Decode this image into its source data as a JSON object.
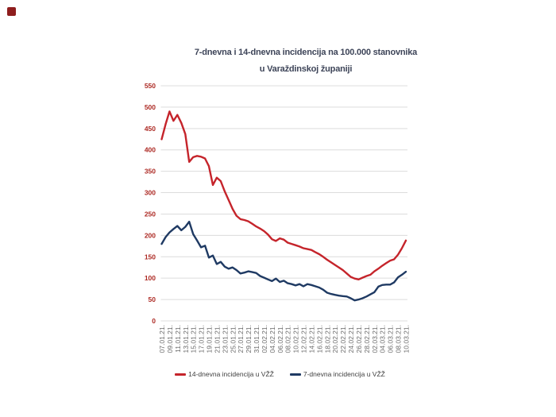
{
  "page": {
    "corner_marker_color": "#8e1d1d"
  },
  "chart": {
    "title_line1": "7-dnevna i 14-dnevna incidencija na 100.000 stanovnika",
    "title_line2": "u Varaždinskoj županiji",
    "legend": [
      {
        "label": "14-dnevna incidencija u VŽŽ",
        "color": "#c5242b"
      },
      {
        "label": "7-dnevna incidencija u VŽŽ",
        "color": "#1f3a63"
      }
    ],
    "colors": {
      "y_labels": "#ad2a24",
      "x_labels": "#6a6a6a",
      "gridlines": "#dcdcdc",
      "title": "#3d4458"
    }
  },
  "chart_data": {
    "type": "line",
    "title": "7-dnevna i 14-dnevna incidencija na 100.000 stanovnika u Varaždinskoj županiji",
    "xlabel": "",
    "ylabel": "",
    "ylim": [
      0,
      550
    ],
    "y_tick_step": 50,
    "tick_every": 2,
    "grid": "horizontal",
    "legend_position": "bottom",
    "x": [
      "07.01.21.",
      "08.01.21.",
      "09.01.21.",
      "10.01.21.",
      "11.01.21.",
      "12.01.21.",
      "13.01.21.",
      "14.01.21.",
      "15.01.21.",
      "16.01.21.",
      "17.01.21.",
      "18.01.21.",
      "19.01.21.",
      "20.01.21.",
      "21.01.21.",
      "22.01.21.",
      "23.01.21.",
      "24.01.21.",
      "25.01.21.",
      "26.01.21.",
      "27.01.21.",
      "28.01.21.",
      "29.01.21.",
      "30.01.21.",
      "31.01.21.",
      "01.02.21.",
      "02.02.21.",
      "03.02.21.",
      "04.02.21.",
      "05.02.21.",
      "06.02.21.",
      "07.02.21.",
      "08.02.21.",
      "09.02.21.",
      "10.02.21.",
      "11.02.21.",
      "12.02.21.",
      "13.02.21.",
      "14.02.21.",
      "15.02.21.",
      "16.02.21.",
      "17.02.21.",
      "18.02.21.",
      "19.02.21.",
      "20.02.21.",
      "21.02.21.",
      "22.02.21.",
      "23.02.21.",
      "24.02.21.",
      "25.02.21.",
      "26.02.21.",
      "27.02.21.",
      "28.02.21.",
      "01.03.21.",
      "02.03.21.",
      "03.03.21.",
      "04.03.21.",
      "05.03.21.",
      "06.03.21.",
      "07.03.21.",
      "08.03.21.",
      "09.03.21.",
      "10.03.21."
    ],
    "series": [
      {
        "name": "14-dnevna incidencija u VŽŽ",
        "color": "#c5242b",
        "values": [
          425,
          460,
          490,
          468,
          482,
          463,
          437,
          372,
          383,
          386,
          384,
          380,
          362,
          318,
          335,
          327,
          303,
          283,
          262,
          246,
          238,
          236,
          233,
          227,
          221,
          216,
          210,
          202,
          191,
          187,
          193,
          190,
          183,
          180,
          177,
          174,
          170,
          168,
          166,
          161,
          156,
          150,
          143,
          137,
          131,
          125,
          119,
          111,
          103,
          99,
          97,
          101,
          105,
          108,
          116,
          122,
          129,
          135,
          141,
          144,
          155,
          170,
          188
        ]
      },
      {
        "name": "7-dnevna incidencija u VŽŽ",
        "color": "#1f3a63",
        "values": [
          180,
          196,
          207,
          215,
          222,
          212,
          220,
          232,
          203,
          188,
          172,
          176,
          148,
          153,
          133,
          138,
          127,
          122,
          125,
          119,
          111,
          113,
          116,
          114,
          112,
          105,
          101,
          97,
          93,
          99,
          91,
          94,
          88,
          86,
          83,
          86,
          81,
          86,
          84,
          81,
          78,
          73,
          66,
          63,
          61,
          59,
          58,
          57,
          53,
          48,
          50,
          53,
          57,
          62,
          67,
          80,
          84,
          85,
          85,
          90,
          102,
          108,
          115
        ]
      }
    ]
  }
}
